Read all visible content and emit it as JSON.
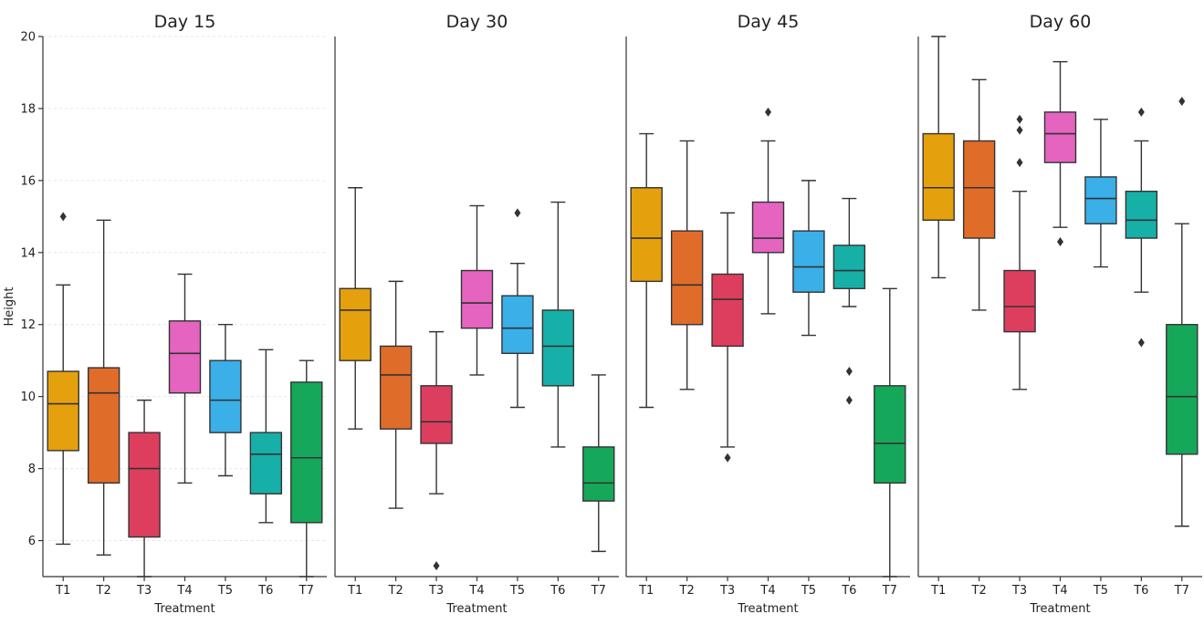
{
  "chart_data": {
    "type": "box",
    "ylabel": "Height",
    "xlabel": "Treatment",
    "ylim": [
      5,
      20
    ],
    "yticks": [
      6,
      8,
      10,
      12,
      14,
      16,
      18,
      20
    ],
    "grid": "horizontal dashed (first panel)",
    "categories": [
      "T1",
      "T2",
      "T3",
      "T4",
      "T5",
      "T6",
      "T7"
    ],
    "colors": [
      "#E5A00D",
      "#E06C2A",
      "#DE3E5E",
      "#E464C0",
      "#3AAFE8",
      "#17B0A8",
      "#16A85A"
    ],
    "panels": [
      {
        "title": "Day 15",
        "boxes": [
          {
            "category": "T1",
            "whislo": 5.9,
            "q1": 8.5,
            "med": 9.8,
            "q3": 10.7,
            "whishi": 13.1,
            "fliers": [
              15.0
            ]
          },
          {
            "category": "T2",
            "whislo": 5.6,
            "q1": 7.6,
            "med": 10.1,
            "q3": 10.8,
            "whishi": 14.9,
            "fliers": []
          },
          {
            "category": "T3",
            "whislo": 5.0,
            "q1": 6.1,
            "med": 8.0,
            "q3": 9.0,
            "whishi": 9.9,
            "fliers": []
          },
          {
            "category": "T4",
            "whislo": 7.6,
            "q1": 10.1,
            "med": 11.2,
            "q3": 12.1,
            "whishi": 13.4,
            "fliers": []
          },
          {
            "category": "T5",
            "whislo": 7.8,
            "q1": 9.0,
            "med": 9.9,
            "q3": 11.0,
            "whishi": 12.0,
            "fliers": []
          },
          {
            "category": "T6",
            "whislo": 6.5,
            "q1": 7.3,
            "med": 8.4,
            "q3": 9.0,
            "whishi": 11.3,
            "fliers": []
          },
          {
            "category": "T7",
            "whislo": 5.0,
            "q1": 6.5,
            "med": 8.3,
            "q3": 10.4,
            "whishi": 11.0,
            "fliers": []
          }
        ]
      },
      {
        "title": "Day 30",
        "boxes": [
          {
            "category": "T1",
            "whislo": 9.1,
            "q1": 11.0,
            "med": 12.4,
            "q3": 13.0,
            "whishi": 15.8,
            "fliers": []
          },
          {
            "category": "T2",
            "whislo": 6.9,
            "q1": 9.1,
            "med": 10.6,
            "q3": 11.4,
            "whishi": 13.2,
            "fliers": []
          },
          {
            "category": "T3",
            "whislo": 7.3,
            "q1": 8.7,
            "med": 9.3,
            "q3": 10.3,
            "whishi": 11.8,
            "fliers": [
              5.3
            ]
          },
          {
            "category": "T4",
            "whislo": 10.6,
            "q1": 11.9,
            "med": 12.6,
            "q3": 13.5,
            "whishi": 15.3,
            "fliers": []
          },
          {
            "category": "T5",
            "whislo": 9.7,
            "q1": 11.2,
            "med": 11.9,
            "q3": 12.8,
            "whishi": 13.7,
            "fliers": [
              15.1
            ]
          },
          {
            "category": "T6",
            "whislo": 8.6,
            "q1": 10.3,
            "med": 11.4,
            "q3": 12.4,
            "whishi": 15.4,
            "fliers": []
          },
          {
            "category": "T7",
            "whislo": 5.7,
            "q1": 7.1,
            "med": 7.6,
            "q3": 8.6,
            "whishi": 10.6,
            "fliers": []
          }
        ]
      },
      {
        "title": "Day 45",
        "boxes": [
          {
            "category": "T1",
            "whislo": 9.7,
            "q1": 13.2,
            "med": 14.4,
            "q3": 15.8,
            "whishi": 17.3,
            "fliers": []
          },
          {
            "category": "T2",
            "whislo": 10.2,
            "q1": 12.0,
            "med": 13.1,
            "q3": 14.6,
            "whishi": 17.1,
            "fliers": []
          },
          {
            "category": "T3",
            "whislo": 8.6,
            "q1": 11.4,
            "med": 12.7,
            "q3": 13.4,
            "whishi": 15.1,
            "fliers": [
              8.3
            ]
          },
          {
            "category": "T4",
            "whislo": 12.3,
            "q1": 14.0,
            "med": 14.4,
            "q3": 15.4,
            "whishi": 17.1,
            "fliers": [
              17.9
            ]
          },
          {
            "category": "T5",
            "whislo": 11.7,
            "q1": 12.9,
            "med": 13.6,
            "q3": 14.6,
            "whishi": 16.0,
            "fliers": []
          },
          {
            "category": "T6",
            "whislo": 12.5,
            "q1": 13.0,
            "med": 13.5,
            "q3": 14.2,
            "whishi": 15.5,
            "fliers": [
              10.7,
              9.9
            ]
          },
          {
            "category": "T7",
            "whislo": 5.0,
            "q1": 7.6,
            "med": 8.7,
            "q3": 10.3,
            "whishi": 13.0,
            "fliers": []
          }
        ]
      },
      {
        "title": "Day 60",
        "boxes": [
          {
            "category": "T1",
            "whislo": 13.3,
            "q1": 14.9,
            "med": 15.8,
            "q3": 17.3,
            "whishi": 20.0,
            "fliers": []
          },
          {
            "category": "T2",
            "whislo": 12.4,
            "q1": 14.4,
            "med": 15.8,
            "q3": 17.1,
            "whishi": 18.8,
            "fliers": []
          },
          {
            "category": "T3",
            "whislo": 10.2,
            "q1": 11.8,
            "med": 12.5,
            "q3": 13.5,
            "whishi": 15.7,
            "fliers": [
              17.7,
              17.4,
              16.5
            ]
          },
          {
            "category": "T4",
            "whislo": 14.7,
            "q1": 16.5,
            "med": 17.3,
            "q3": 17.9,
            "whishi": 19.3,
            "fliers": [
              14.3
            ]
          },
          {
            "category": "T5",
            "whislo": 13.6,
            "q1": 14.8,
            "med": 15.5,
            "q3": 16.1,
            "whishi": 17.7,
            "fliers": []
          },
          {
            "category": "T6",
            "whislo": 12.9,
            "q1": 14.4,
            "med": 14.9,
            "q3": 15.7,
            "whishi": 17.1,
            "fliers": [
              17.9,
              11.5
            ]
          },
          {
            "category": "T7",
            "whislo": 6.4,
            "q1": 8.4,
            "med": 10.0,
            "q3": 12.0,
            "whishi": 14.8,
            "fliers": [
              18.2
            ]
          }
        ]
      }
    ]
  }
}
